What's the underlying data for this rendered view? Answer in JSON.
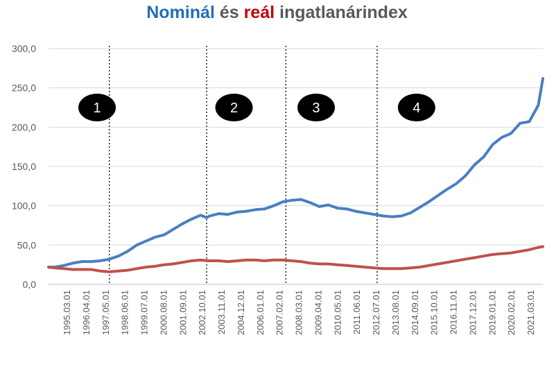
{
  "title": {
    "part1": "Nominál",
    "part2": " és ",
    "part3": "reál",
    "part4": " ingatlanárindex"
  },
  "colors": {
    "nominal": "#4A7EC2",
    "real": "#C0504D",
    "title_nominal": "#1F6FB8",
    "title_real": "#C00000",
    "text": "#595959",
    "grid": "#D9D9D9"
  },
  "chart_data": {
    "type": "line",
    "title": "Nominál és reál ingatlanárindex",
    "ylim": [
      0,
      300
    ],
    "y_ticks": [
      "0,0",
      "50,0",
      "100,0",
      "150,0",
      "200,0",
      "250,0",
      "300,0"
    ],
    "x_tick_labels": [
      "1995.03.01",
      "1996.04.01",
      "1997.05.01",
      "1998.06.01",
      "1999.07.01",
      "2000.08.01",
      "2001.09.01",
      "2002.10.01",
      "2003.11.01",
      "2004.12.01",
      "2006.01.01",
      "2007.02.01",
      "2008.03.01",
      "2009.04.01",
      "2010.05.01",
      "2011.06.01",
      "2012.07.01",
      "2013.08.01",
      "2014.09.01",
      "2015.10.01",
      "2016.11.01",
      "2017.12.01",
      "2019.01.01",
      "2020.02.01",
      "2021.03.01"
    ],
    "x_range": [
      1995.17,
      2022.25
    ],
    "grid": "horizontal",
    "period_dividers": [
      1998.5,
      2003.83,
      2008.17,
      2013.17
    ],
    "period_labels": [
      {
        "label": "1",
        "x": 1997.83
      },
      {
        "label": "2",
        "x": 2005.33
      },
      {
        "label": "3",
        "x": 2009.83
      },
      {
        "label": "4",
        "x": 2015.33
      }
    ],
    "series": [
      {
        "name": "Nominál",
        "x": [
          1995.17,
          1995.5,
          1996.0,
          1996.5,
          1997.0,
          1997.5,
          1998.0,
          1998.5,
          1999.0,
          1999.5,
          2000.0,
          2000.5,
          2001.0,
          2001.5,
          2002.0,
          2002.5,
          2003.0,
          2003.5,
          2003.83,
          2004.0,
          2004.5,
          2005.0,
          2005.5,
          2006.0,
          2006.5,
          2007.0,
          2007.5,
          2008.0,
          2008.5,
          2009.0,
          2009.5,
          2010.0,
          2010.5,
          2011.0,
          2011.5,
          2012.0,
          2012.5,
          2013.0,
          2013.5,
          2014.0,
          2014.5,
          2015.0,
          2015.5,
          2016.0,
          2016.5,
          2017.0,
          2017.5,
          2018.0,
          2018.5,
          2019.0,
          2019.5,
          2020.0,
          2020.5,
          2021.0,
          2021.5,
          2022.0,
          2022.25
        ],
        "values": [
          22,
          22,
          24,
          27,
          29,
          29,
          30,
          32,
          36,
          42,
          50,
          55,
          60,
          63,
          70,
          77,
          83,
          88,
          85,
          87,
          90,
          89,
          92,
          93,
          95,
          96,
          100,
          105,
          107,
          108,
          104,
          99,
          101,
          97,
          96,
          93,
          91,
          89,
          87,
          86,
          87,
          91,
          98,
          105,
          113,
          121,
          128,
          138,
          152,
          162,
          178,
          187,
          192,
          205,
          207,
          228,
          262
        ]
      },
      {
        "name": "Reál",
        "x": [
          1995.17,
          1995.5,
          1996.0,
          1996.5,
          1997.0,
          1997.5,
          1998.0,
          1998.5,
          1999.0,
          1999.5,
          2000.0,
          2000.5,
          2001.0,
          2001.5,
          2002.0,
          2002.5,
          2003.0,
          2003.5,
          2004.0,
          2004.5,
          2005.0,
          2005.5,
          2006.0,
          2006.5,
          2007.0,
          2007.5,
          2008.0,
          2008.5,
          2009.0,
          2009.5,
          2010.0,
          2010.5,
          2011.0,
          2011.5,
          2012.0,
          2012.5,
          2013.0,
          2013.5,
          2014.0,
          2014.5,
          2015.0,
          2015.5,
          2016.0,
          2016.5,
          2017.0,
          2017.5,
          2018.0,
          2018.5,
          2019.0,
          2019.5,
          2020.0,
          2020.5,
          2021.0,
          2021.5,
          2022.0,
          2022.25
        ],
        "values": [
          22,
          21,
          20,
          19,
          19,
          19,
          17,
          16,
          17,
          18,
          20,
          22,
          23,
          25,
          26,
          28,
          30,
          31,
          30,
          30,
          29,
          30,
          31,
          31,
          30,
          31,
          31,
          30,
          29,
          27,
          26,
          26,
          25,
          24,
          23,
          22,
          21,
          20,
          20,
          20,
          21,
          22,
          24,
          26,
          28,
          30,
          32,
          34,
          36,
          38,
          39,
          40,
          42,
          44,
          47,
          48
        ]
      }
    ]
  }
}
